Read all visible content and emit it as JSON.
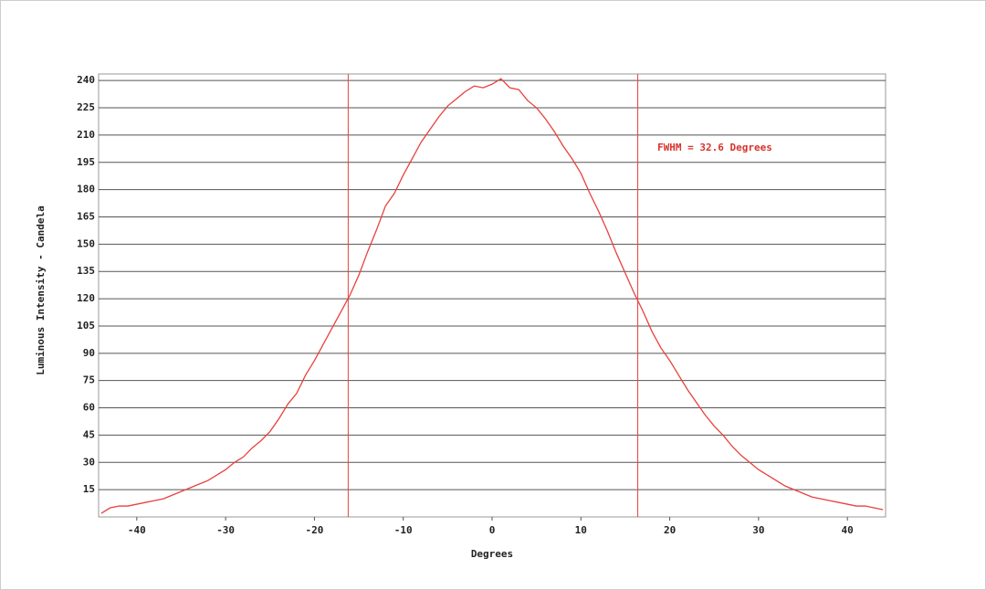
{
  "chart_data": {
    "type": "line",
    "x_label": "Degrees",
    "y_label": "Luminous Intensity - Candela",
    "annotation": "FWHM = 32.6 Degrees",
    "x": [
      -44,
      -43,
      -42,
      -41,
      -40,
      -39,
      -38,
      -37,
      -36,
      -35,
      -34,
      -33,
      -32,
      -31,
      -30,
      -29,
      -28,
      -27,
      -26,
      -25,
      -24,
      -23,
      -22,
      -21,
      -20,
      -19,
      -18,
      -17,
      -16,
      -15,
      -14,
      -13,
      -12,
      -11,
      -10,
      -9,
      -8,
      -7,
      -6,
      -5,
      -4,
      -3,
      -2,
      -1,
      0,
      1,
      2,
      3,
      4,
      5,
      6,
      7,
      8,
      9,
      10,
      11,
      12,
      13,
      14,
      15,
      16,
      17,
      18,
      19,
      20,
      21,
      22,
      23,
      24,
      25,
      26,
      27,
      28,
      29,
      30,
      31,
      32,
      33,
      34,
      35,
      36,
      37,
      38,
      39,
      40,
      41,
      42,
      43,
      44
    ],
    "series": [
      {
        "color": "#e8413c",
        "values": [
          2,
          5,
          6,
          6,
          7,
          8,
          9,
          10,
          12,
          14,
          16,
          18,
          20,
          23,
          26,
          30,
          33,
          38,
          42,
          47,
          54,
          62,
          68,
          78,
          86,
          95,
          104,
          113,
          122,
          133,
          146,
          158,
          171,
          178,
          188,
          197,
          206,
          213,
          220,
          226,
          230,
          234,
          237,
          236,
          238,
          241,
          236,
          235,
          229,
          225,
          219,
          212,
          204,
          197,
          189,
          178,
          168,
          157,
          145,
          134,
          123,
          113,
          102,
          93,
          86,
          78,
          70,
          63,
          56,
          50,
          45,
          39,
          34,
          30,
          26,
          23,
          20,
          17,
          15,
          13,
          11,
          10,
          9,
          8,
          7,
          6,
          6,
          5,
          4
        ]
      }
    ],
    "vlines": [
      -16.2,
      16.4
    ],
    "xlim": [
      -44.3,
      44.3
    ],
    "ylim": [
      0,
      243.6
    ],
    "xticks": [
      -40,
      -30,
      -20,
      -10,
      0,
      10,
      20,
      30,
      40
    ],
    "yticks": [
      15,
      30,
      45,
      60,
      75,
      90,
      105,
      120,
      135,
      150,
      165,
      180,
      195,
      210,
      225,
      240
    ],
    "grid": true
  }
}
